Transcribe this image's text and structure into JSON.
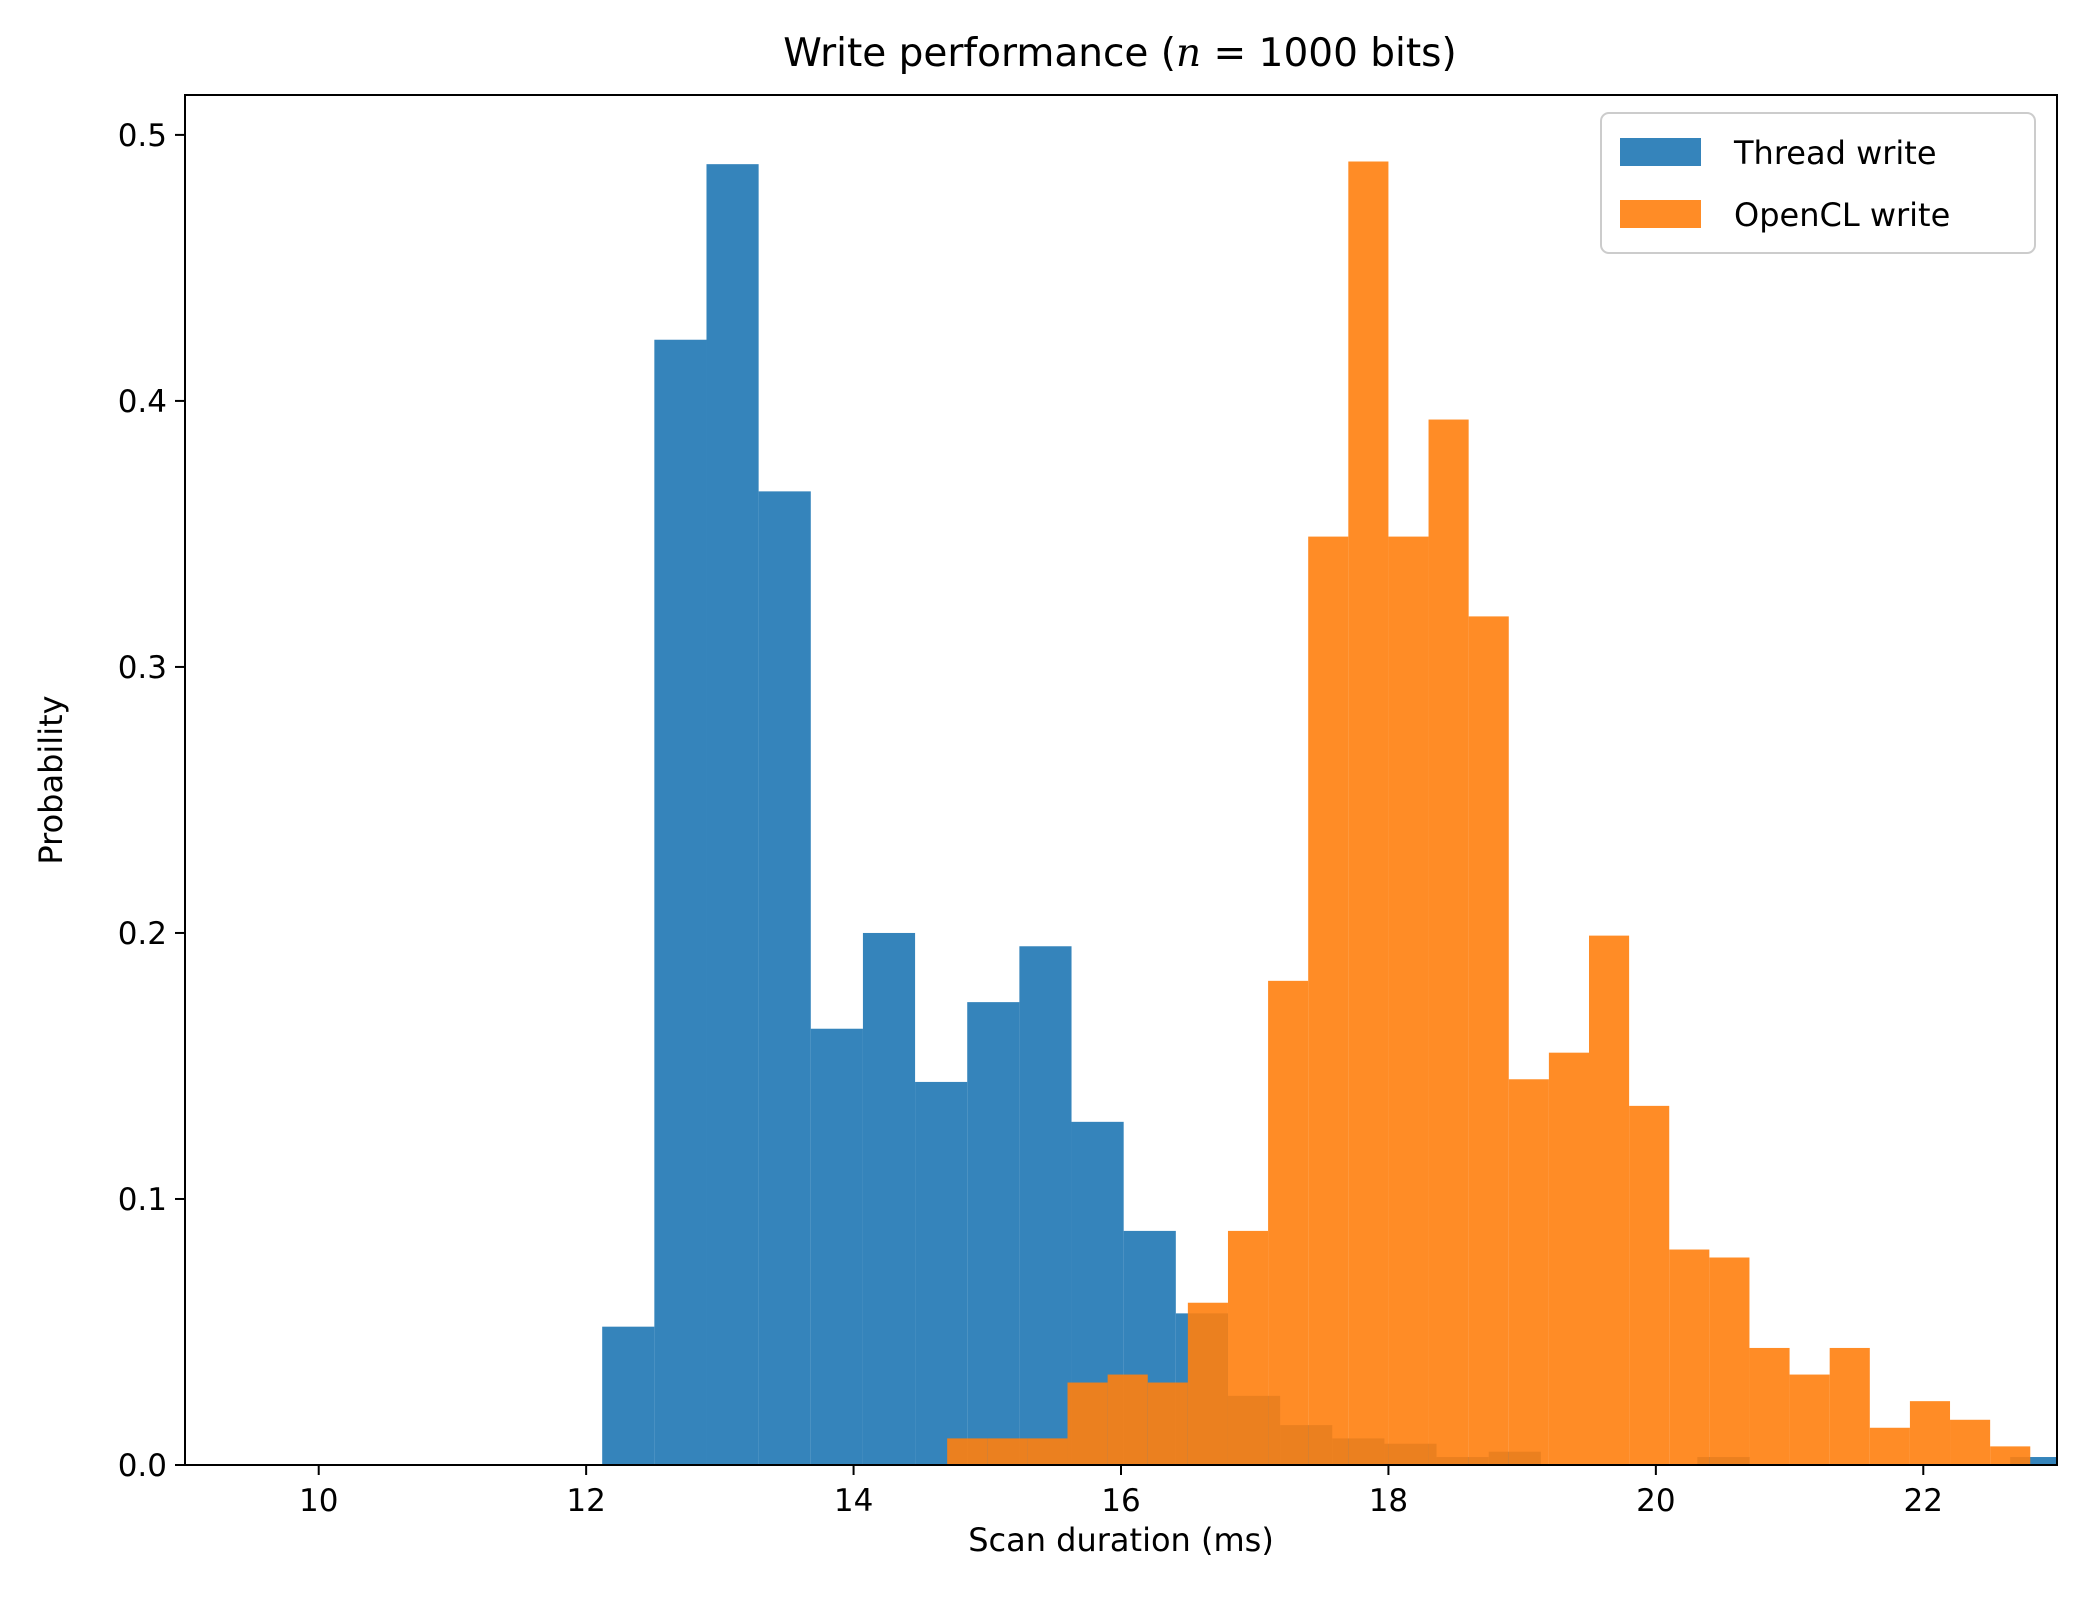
{
  "chart_data": {
    "type": "histogram",
    "title_prefix": "Write performance (",
    "title_var": "n",
    "title_suffix": " = 1000 bits)",
    "xlabel": "Scan duration (ms)",
    "ylabel": "Probability",
    "xlim": [
      9.0,
      23.0
    ],
    "ylim": [
      0.0,
      0.515
    ],
    "xticks": [
      10,
      12,
      14,
      16,
      18,
      20,
      22
    ],
    "xtick_labels": [
      "10",
      "12",
      "14",
      "16",
      "18",
      "20",
      "22"
    ],
    "yticks": [
      0.0,
      0.1,
      0.2,
      0.3,
      0.4,
      0.5
    ],
    "ytick_labels": [
      "0.0",
      "0.1",
      "0.2",
      "0.3",
      "0.4",
      "0.5"
    ],
    "grid": false,
    "legend_position": "top-right",
    "series": [
      {
        "name": "Thread write",
        "color": "#1f77b4",
        "opacity": 0.9,
        "bins": [
          [
            12.12,
            12.51,
            0.052
          ],
          [
            12.51,
            12.9,
            0.423
          ],
          [
            12.9,
            13.29,
            0.489
          ],
          [
            13.29,
            13.68,
            0.366
          ],
          [
            13.68,
            14.07,
            0.164
          ],
          [
            14.07,
            14.46,
            0.2
          ],
          [
            14.46,
            14.85,
            0.144
          ],
          [
            14.85,
            15.24,
            0.174
          ],
          [
            15.24,
            15.63,
            0.195
          ],
          [
            15.63,
            16.02,
            0.129
          ],
          [
            16.02,
            16.41,
            0.088
          ],
          [
            16.41,
            16.8,
            0.057
          ],
          [
            16.8,
            17.19,
            0.026
          ],
          [
            17.19,
            17.58,
            0.015
          ],
          [
            17.58,
            17.97,
            0.01
          ],
          [
            17.97,
            18.36,
            0.008
          ],
          [
            18.36,
            18.75,
            0.003
          ],
          [
            18.75,
            19.14,
            0.005
          ],
          [
            19.14,
            19.53,
            0.0
          ],
          [
            19.53,
            19.92,
            0.0
          ],
          [
            19.92,
            20.31,
            0.0
          ],
          [
            20.31,
            20.7,
            0.003
          ],
          [
            20.7,
            21.09,
            0.0
          ],
          [
            21.09,
            21.48,
            0.0
          ],
          [
            21.48,
            21.87,
            0.0
          ],
          [
            21.87,
            22.26,
            0.0
          ],
          [
            22.26,
            22.65,
            0.0
          ],
          [
            22.65,
            23.04,
            0.003
          ]
        ]
      },
      {
        "name": "OpenCL write",
        "color": "#ff7f0e",
        "opacity": 0.9,
        "bins": [
          [
            14.7,
            15.0,
            0.01
          ],
          [
            15.0,
            15.3,
            0.01
          ],
          [
            15.3,
            15.6,
            0.01
          ],
          [
            15.6,
            15.9,
            0.031
          ],
          [
            15.9,
            16.2,
            0.034
          ],
          [
            16.2,
            16.5,
            0.031
          ],
          [
            16.5,
            16.8,
            0.061
          ],
          [
            16.8,
            17.1,
            0.088
          ],
          [
            17.1,
            17.4,
            0.182
          ],
          [
            17.4,
            17.7,
            0.349
          ],
          [
            17.7,
            18.0,
            0.49
          ],
          [
            18.0,
            18.3,
            0.349
          ],
          [
            18.3,
            18.6,
            0.393
          ],
          [
            18.6,
            18.9,
            0.319
          ],
          [
            18.9,
            19.2,
            0.145
          ],
          [
            19.2,
            19.5,
            0.155
          ],
          [
            19.5,
            19.8,
            0.199
          ],
          [
            19.8,
            20.1,
            0.135
          ],
          [
            20.1,
            20.4,
            0.081
          ],
          [
            20.4,
            20.7,
            0.078
          ],
          [
            20.7,
            21.0,
            0.044
          ],
          [
            21.0,
            21.3,
            0.034
          ],
          [
            21.3,
            21.6,
            0.044
          ],
          [
            21.6,
            21.9,
            0.014
          ],
          [
            21.9,
            22.2,
            0.024
          ],
          [
            22.2,
            22.5,
            0.017
          ],
          [
            22.5,
            22.8,
            0.007
          ]
        ]
      }
    ]
  }
}
